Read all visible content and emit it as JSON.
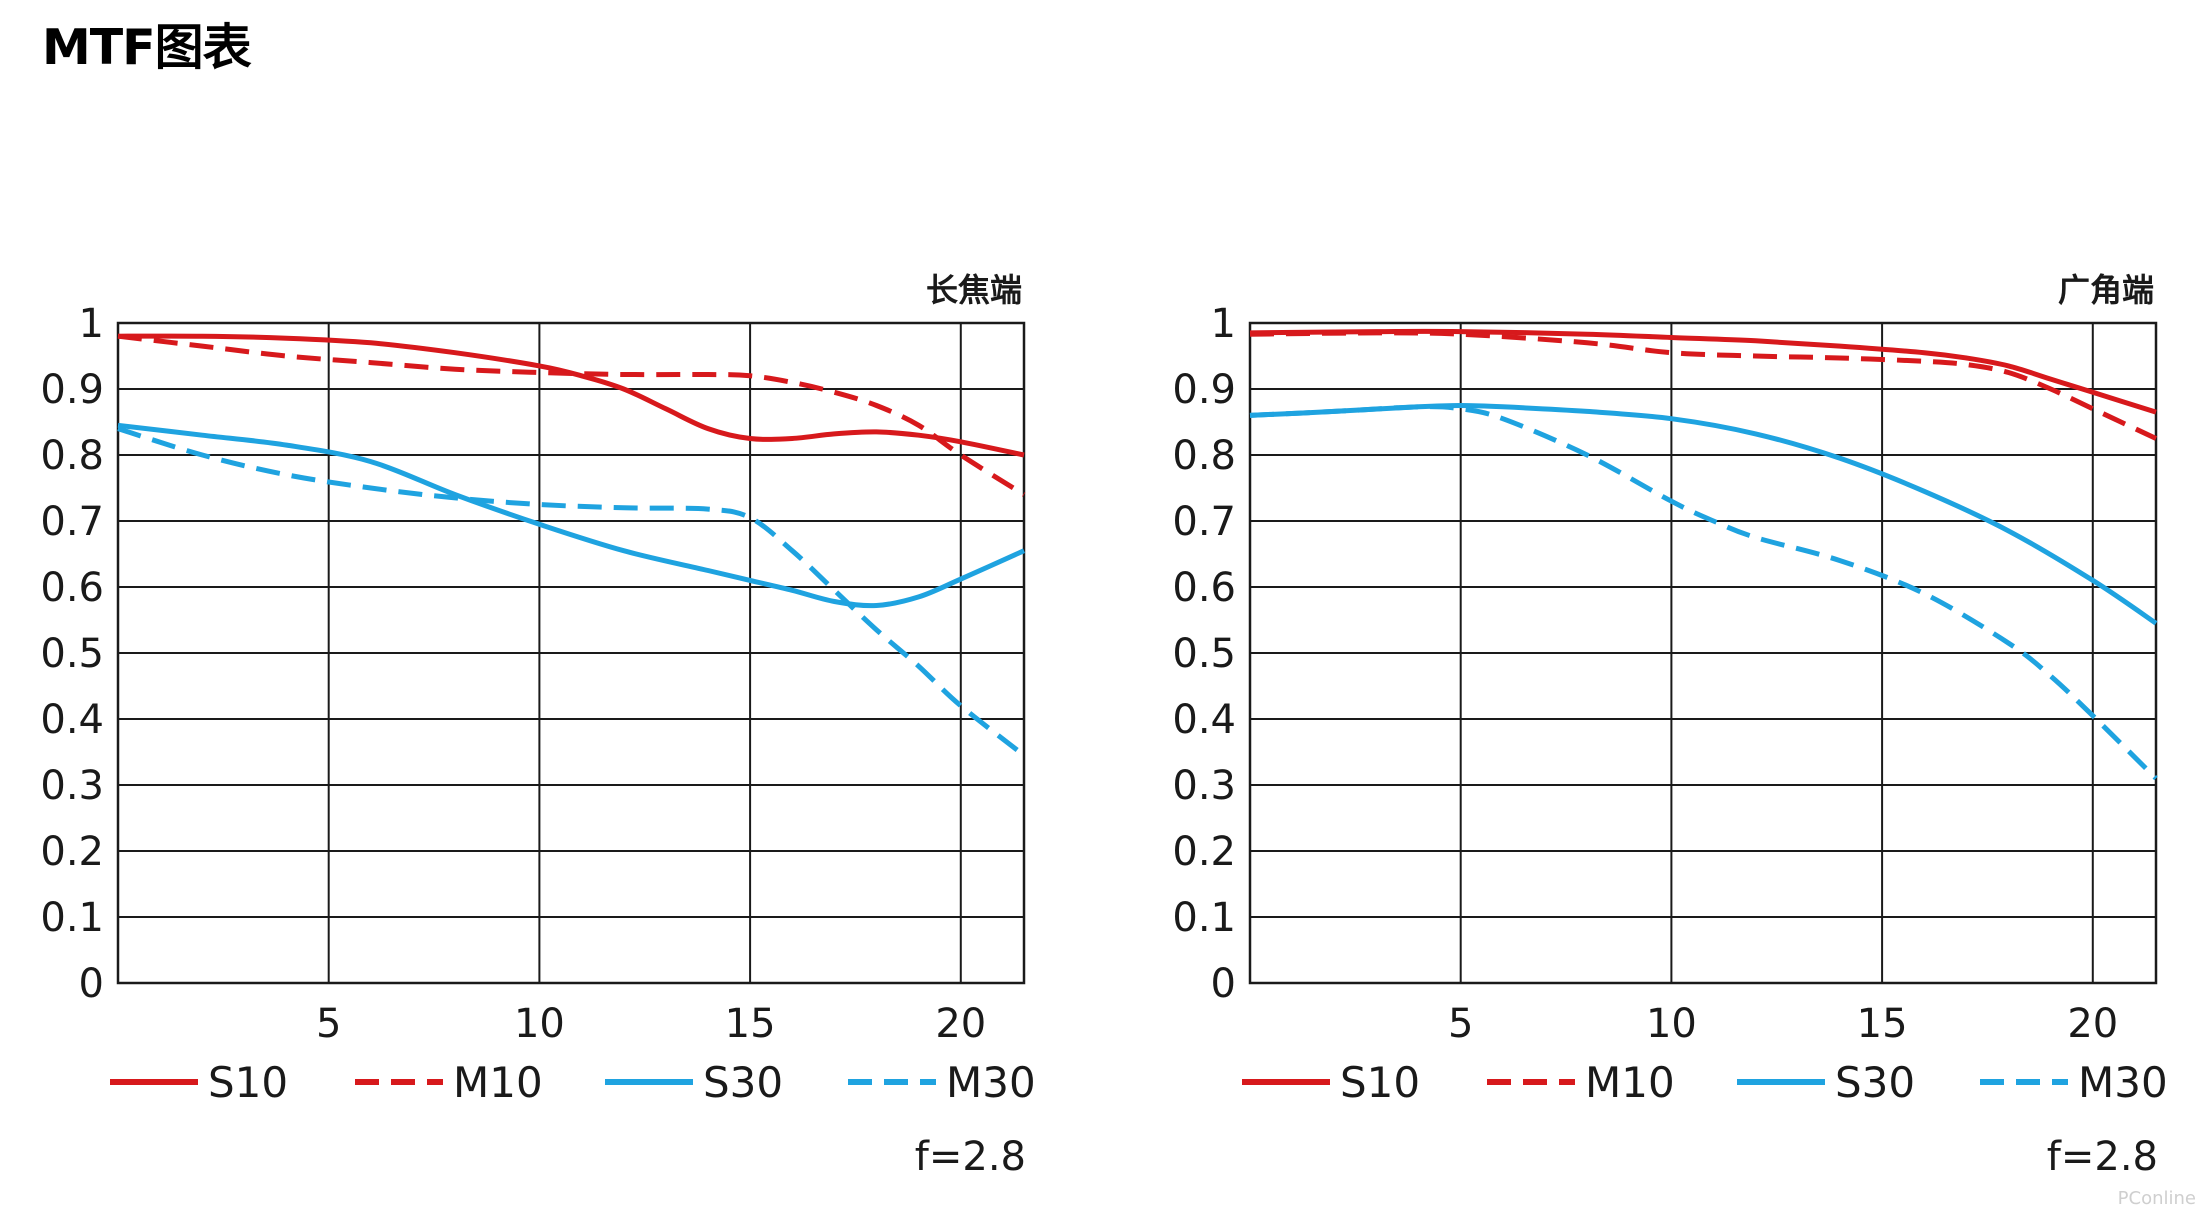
{
  "page_title": "MTF图表",
  "watermark": "PConline",
  "colors": {
    "red": "#d7191c",
    "blue": "#1fa3e0",
    "grid": "#1a1a1a"
  },
  "chart_data": [
    {
      "type": "line",
      "title": "长焦端",
      "note": "f=2.8",
      "xlim": [
        0,
        21.5
      ],
      "ylim": [
        0,
        1
      ],
      "xticks": [
        5,
        10,
        15,
        20
      ],
      "yticks": [
        0,
        0.1,
        0.2,
        0.3,
        0.4,
        0.5,
        0.6,
        0.7,
        0.8,
        0.9,
        1
      ],
      "ytick_labels": [
        "0",
        "0.1",
        "0.2",
        "0.3",
        "0.4",
        "0.5",
        "0.6",
        "0.7",
        "0.8",
        "0.9",
        "1"
      ],
      "grid": true,
      "legend": "bottom",
      "series": [
        {
          "name": "S10",
          "color": "#d7191c",
          "dash": false,
          "x": [
            0,
            2,
            4,
            6,
            8,
            10,
            11,
            12,
            13,
            14,
            15,
            16,
            17,
            18,
            19,
            20,
            21.5
          ],
          "y": [
            0.98,
            0.98,
            0.977,
            0.97,
            0.955,
            0.935,
            0.92,
            0.9,
            0.87,
            0.84,
            0.825,
            0.825,
            0.832,
            0.835,
            0.83,
            0.82,
            0.8
          ]
        },
        {
          "name": "M10",
          "color": "#d7191c",
          "dash": true,
          "x": [
            0,
            2,
            4,
            6,
            8,
            10,
            12,
            14,
            15,
            16,
            17,
            18,
            19,
            20,
            21.5
          ],
          "y": [
            0.98,
            0.965,
            0.95,
            0.94,
            0.93,
            0.925,
            0.922,
            0.922,
            0.92,
            0.91,
            0.895,
            0.875,
            0.845,
            0.8,
            0.74
          ]
        },
        {
          "name": "S30",
          "color": "#1fa3e0",
          "dash": false,
          "x": [
            0,
            2,
            4,
            6,
            8,
            10,
            12,
            14,
            15,
            16,
            17,
            18,
            19,
            20,
            21.5
          ],
          "y": [
            0.845,
            0.83,
            0.815,
            0.79,
            0.74,
            0.695,
            0.655,
            0.625,
            0.61,
            0.595,
            0.578,
            0.572,
            0.585,
            0.612,
            0.655
          ]
        },
        {
          "name": "M30",
          "color": "#1fa3e0",
          "dash": true,
          "x": [
            0,
            2,
            4,
            6,
            8,
            10,
            12,
            14,
            15,
            16,
            17,
            18,
            19,
            20,
            21.5
          ],
          "y": [
            0.84,
            0.8,
            0.77,
            0.75,
            0.735,
            0.725,
            0.72,
            0.718,
            0.705,
            0.655,
            0.595,
            0.535,
            0.48,
            0.42,
            0.345
          ]
        }
      ]
    },
    {
      "type": "line",
      "title": "广角端",
      "note": "f=2.8",
      "xlim": [
        0,
        21.5
      ],
      "ylim": [
        0,
        1
      ],
      "xticks": [
        5,
        10,
        15,
        20
      ],
      "yticks": [
        0,
        0.1,
        0.2,
        0.3,
        0.4,
        0.5,
        0.6,
        0.7,
        0.8,
        0.9,
        1
      ],
      "ytick_labels": [
        "0",
        "0.1",
        "0.2",
        "0.3",
        "0.4",
        "0.5",
        "0.6",
        "0.7",
        "0.8",
        "0.9",
        "1"
      ],
      "grid": true,
      "legend": "bottom",
      "series": [
        {
          "name": "S10",
          "color": "#d7191c",
          "dash": false,
          "x": [
            0,
            3,
            5,
            8,
            10,
            12,
            14,
            16,
            17,
            18,
            19,
            20,
            21.5
          ],
          "y": [
            0.985,
            0.987,
            0.987,
            0.983,
            0.978,
            0.973,
            0.965,
            0.955,
            0.947,
            0.935,
            0.915,
            0.895,
            0.865
          ]
        },
        {
          "name": "M10",
          "color": "#d7191c",
          "dash": true,
          "x": [
            0,
            3,
            5,
            8,
            10,
            12,
            14,
            16,
            17,
            18,
            19,
            20,
            21.5
          ],
          "y": [
            0.983,
            0.985,
            0.983,
            0.97,
            0.955,
            0.95,
            0.947,
            0.942,
            0.937,
            0.925,
            0.9,
            0.87,
            0.825
          ]
        },
        {
          "name": "S30",
          "color": "#1fa3e0",
          "dash": false,
          "x": [
            0,
            2,
            4,
            5,
            6,
            8,
            10,
            12,
            14,
            16,
            18,
            20,
            21.5
          ],
          "y": [
            0.86,
            0.866,
            0.873,
            0.875,
            0.873,
            0.866,
            0.855,
            0.832,
            0.795,
            0.745,
            0.685,
            0.61,
            0.545
          ]
        },
        {
          "name": "M30",
          "color": "#1fa3e0",
          "dash": true,
          "x": [
            0,
            2,
            4,
            5,
            6,
            8,
            10,
            11,
            12,
            14,
            16,
            18,
            19,
            20,
            21.5
          ],
          "y": [
            0.86,
            0.866,
            0.873,
            0.87,
            0.855,
            0.8,
            0.73,
            0.7,
            0.675,
            0.64,
            0.59,
            0.515,
            0.465,
            0.405,
            0.31
          ]
        }
      ]
    }
  ]
}
